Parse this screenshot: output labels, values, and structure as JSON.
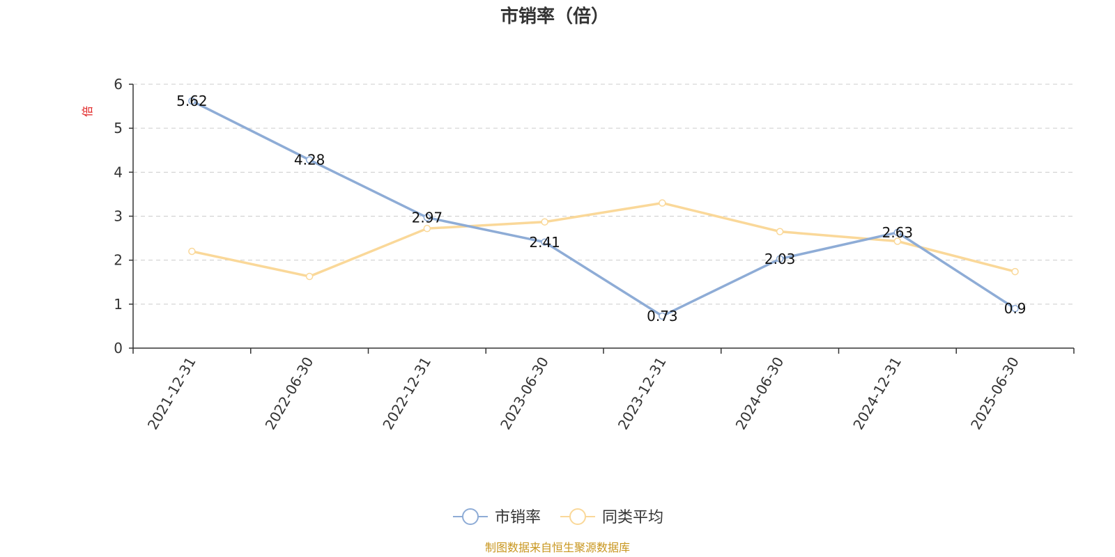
{
  "chart_data": {
    "type": "line",
    "title": "市销率（倍）",
    "ylabel": "倍",
    "ylim": [
      0,
      6
    ],
    "yticks": [
      0,
      1,
      2,
      3,
      4,
      5,
      6
    ],
    "grid": true,
    "legend_position": "bottom",
    "categories": [
      "2021-12-31",
      "2022-06-30",
      "2022-12-31",
      "2023-06-30",
      "2023-12-31",
      "2024-06-30",
      "2024-12-31",
      "2025-06-30"
    ],
    "series": [
      {
        "name": "市销率",
        "color": "#8eacd6",
        "values": [
          5.62,
          4.28,
          2.97,
          2.41,
          0.73,
          2.03,
          2.63,
          0.9
        ],
        "labels": [
          "5.62",
          "4.28",
          "2.97",
          "2.41",
          "0.73",
          "2.03",
          "2.63",
          "0.9"
        ]
      },
      {
        "name": "同类平均",
        "color": "#fad899",
        "values": [
          2.2,
          1.63,
          2.72,
          2.87,
          3.3,
          2.65,
          2.43,
          1.74
        ]
      }
    ]
  },
  "source": "制图数据来自恒生聚源数据库"
}
